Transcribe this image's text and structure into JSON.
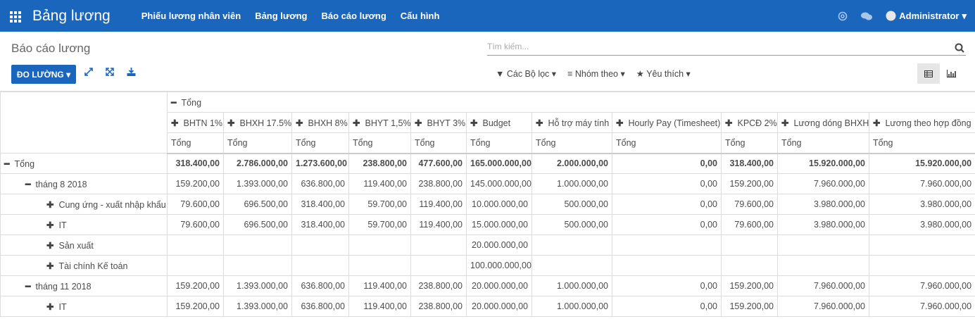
{
  "navbar": {
    "app": "Bảng lương",
    "menu": [
      "Phiếu lương nhân viên",
      "Bảng lương",
      "Báo cáo lương",
      "Cấu hình"
    ],
    "user": "Administrator"
  },
  "control": {
    "breadcrumb": "Báo cáo lương",
    "search_placeholder": "Tìm kiếm...",
    "measures_button": "ĐO LƯỜNG",
    "filters": "Các Bộ lọc",
    "group_by": "Nhóm theo",
    "favorites": "Yêu thích"
  },
  "table": {
    "col_group": "Tổng",
    "measures": [
      "BHTN 1%",
      "BHXH 17.5%",
      "BHXH 8%",
      "BHYT 1,5%",
      "BHYT 3%",
      "Budget",
      "Hỗ trợ máy tính",
      "Hourly Pay (Timesheet)",
      "KPCĐ 2%",
      "Lương dóng BHXH",
      "Lương theo hợp đồng"
    ],
    "subheaders": [
      "Tổng",
      "Tổng",
      "Tổng",
      "Tổng",
      "Tổng",
      "Tổng",
      "Tổng",
      "Tổng",
      "Tổng",
      "Tổng",
      "Tổng"
    ],
    "rows": [
      {
        "label": "Tổng",
        "level": 0,
        "expanded": true,
        "values": [
          "318.400,00",
          "2.786.000,00",
          "1.273.600,00",
          "238.800,00",
          "477.600,00",
          "165.000.000,00",
          "2.000.000,00",
          "0,00",
          "318.400,00",
          "15.920.000,00",
          "15.920.000,00"
        ]
      },
      {
        "label": "tháng 8 2018",
        "level": 1,
        "expanded": true,
        "values": [
          "159.200,00",
          "1.393.000,00",
          "636.800,00",
          "119.400,00",
          "238.800,00",
          "145.000.000,00",
          "1.000.000,00",
          "0,00",
          "159.200,00",
          "7.960.000,00",
          "7.960.000,00"
        ]
      },
      {
        "label": "Cung ứng - xuất nhập khẩu",
        "level": 2,
        "expanded": false,
        "values": [
          "79.600,00",
          "696.500,00",
          "318.400,00",
          "59.700,00",
          "119.400,00",
          "10.000.000,00",
          "500.000,00",
          "0,00",
          "79.600,00",
          "3.980.000,00",
          "3.980.000,00"
        ]
      },
      {
        "label": "IT",
        "level": 2,
        "expanded": false,
        "values": [
          "79.600,00",
          "696.500,00",
          "318.400,00",
          "59.700,00",
          "119.400,00",
          "15.000.000,00",
          "500.000,00",
          "0,00",
          "79.600,00",
          "3.980.000,00",
          "3.980.000,00"
        ]
      },
      {
        "label": "Sản xuất",
        "level": 2,
        "expanded": false,
        "values": [
          null,
          null,
          null,
          null,
          null,
          "20.000.000,00",
          null,
          null,
          null,
          null,
          null
        ]
      },
      {
        "label": "Tài chính Kế toán",
        "level": 2,
        "expanded": false,
        "values": [
          null,
          null,
          null,
          null,
          null,
          "100.000.000,00",
          null,
          null,
          null,
          null,
          null
        ]
      },
      {
        "label": "tháng 11 2018",
        "level": 1,
        "expanded": true,
        "values": [
          "159.200,00",
          "1.393.000,00",
          "636.800,00",
          "119.400,00",
          "238.800,00",
          "20.000.000,00",
          "1.000.000,00",
          "0,00",
          "159.200,00",
          "7.960.000,00",
          "7.960.000,00"
        ]
      },
      {
        "label": "IT",
        "level": 2,
        "expanded": false,
        "values": [
          "159.200,00",
          "1.393.000,00",
          "636.800,00",
          "119.400,00",
          "238.800,00",
          "20.000.000,00",
          "1.000.000,00",
          "0,00",
          "159.200,00",
          "7.960.000,00",
          "7.960.000,00"
        ]
      }
    ]
  }
}
